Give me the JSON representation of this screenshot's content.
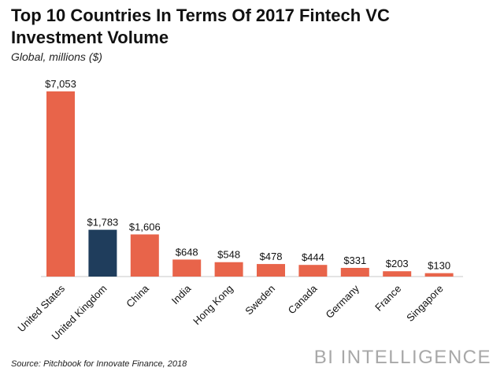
{
  "header": {
    "title": "Top 10 Countries In Terms Of 2017 Fintech VC Investment Volume",
    "subtitle": "Global, millions ($)"
  },
  "footer": {
    "source": "Source: Pitchbook for Innovate Finance, 2018",
    "brand": "BI INTELLIGENCE"
  },
  "colors": {
    "bar": "#e8644a",
    "highlight": "#1f3d5c",
    "axis": "#c8c8c8"
  },
  "chart_data": {
    "type": "bar",
    "title": "Top 10 Countries In Terms Of 2017 Fintech VC Investment Volume",
    "subtitle": "Global, millions ($)",
    "categories": [
      "United States",
      "United Kingdom",
      "China",
      "India",
      "Hong Kong",
      "Sweden",
      "Canada",
      "Germany",
      "France",
      "Singapore"
    ],
    "values": [
      7053,
      1783,
      1606,
      648,
      548,
      478,
      444,
      331,
      203,
      130
    ],
    "value_labels": [
      "$7,053",
      "$1,783",
      "$1,606",
      "$648",
      "$548",
      "$478",
      "$444",
      "$331",
      "$203",
      "$130"
    ],
    "highlight_index": 1,
    "xlabel": "",
    "ylabel": "",
    "ylim": [
      0,
      7053
    ],
    "grid": false
  }
}
